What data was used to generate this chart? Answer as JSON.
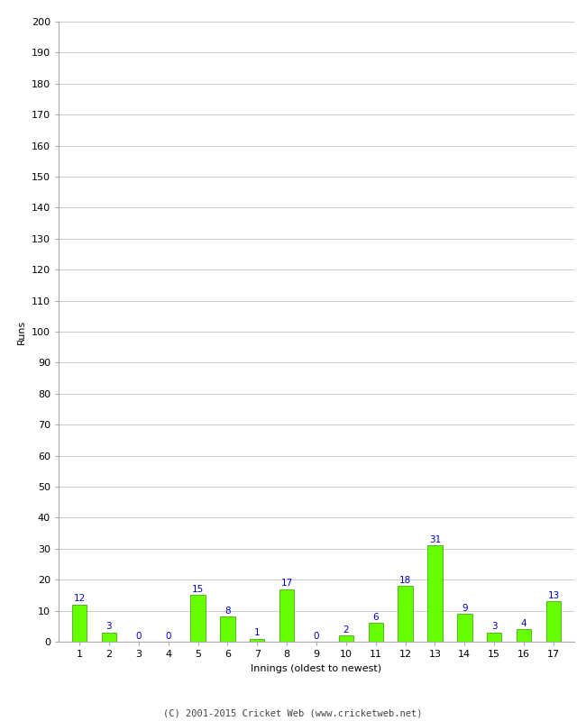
{
  "innings": [
    1,
    2,
    3,
    4,
    5,
    6,
    7,
    8,
    9,
    10,
    11,
    12,
    13,
    14,
    15,
    16,
    17
  ],
  "runs": [
    12,
    3,
    0,
    0,
    15,
    8,
    1,
    17,
    0,
    2,
    6,
    18,
    31,
    9,
    3,
    4,
    13
  ],
  "bar_color": "#66ff00",
  "bar_edge_color": "#339900",
  "label_color": "#0000cc",
  "ylabel": "Runs",
  "xlabel": "Innings (oldest to newest)",
  "ylim": [
    0,
    200
  ],
  "yticks": [
    0,
    10,
    20,
    30,
    40,
    50,
    60,
    70,
    80,
    90,
    100,
    110,
    120,
    130,
    140,
    150,
    160,
    170,
    180,
    190,
    200
  ],
  "background_color": "#ffffff",
  "grid_color": "#cccccc",
  "footer": "(C) 2001-2015 Cricket Web (www.cricketweb.net)",
  "label_fontsize": 7.5,
  "axis_fontsize": 8,
  "footer_fontsize": 7.5,
  "bar_width": 0.5
}
